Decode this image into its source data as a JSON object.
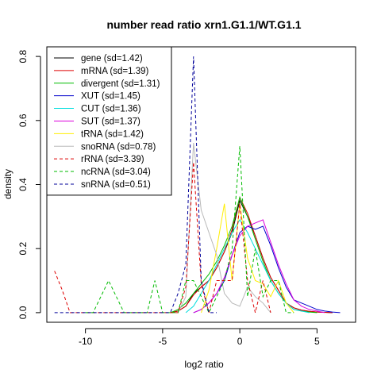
{
  "chart_data": {
    "type": "line",
    "title": "number read ratio xrn1.G1.1/WT.G1.1",
    "xlabel": "log2 ratio",
    "ylabel": "density",
    "xlim": [
      -12.5,
      7.5
    ],
    "ylim": [
      -0.03,
      0.83
    ],
    "xticks": [
      -10,
      -5,
      0,
      5
    ],
    "yticks": [
      0.0,
      0.2,
      0.4,
      0.6,
      0.8
    ],
    "xtick_labels": [
      "-10",
      "-5",
      "0",
      "5"
    ],
    "ytick_labels": [
      "0.0",
      "0.2",
      "0.4",
      "0.6",
      "0.8"
    ],
    "legend_position": "top-left",
    "series": [
      {
        "name": "gene (sd=1.42)",
        "color": "#000000",
        "dash": "solid",
        "x": [
          -4.5,
          -4,
          -3.5,
          -3,
          -2.5,
          -2,
          -1.5,
          -1,
          -0.5,
          0,
          0.5,
          1,
          1.5,
          2,
          2.5,
          3,
          3.5,
          4,
          4.5,
          5,
          5.5,
          6
        ],
        "y": [
          0,
          0.005,
          0.02,
          0.06,
          0.08,
          0.1,
          0.14,
          0.19,
          0.25,
          0.35,
          0.3,
          0.24,
          0.17,
          0.11,
          0.07,
          0.03,
          0.015,
          0.008,
          0.004,
          0.002,
          0.001,
          0
        ]
      },
      {
        "name": "mRNA (sd=1.39)",
        "color": "#dd0000",
        "dash": "solid",
        "x": [
          -4.5,
          -4,
          -3.5,
          -3,
          -2.5,
          -2,
          -1.5,
          -1,
          -0.5,
          0,
          0.5,
          1,
          1.5,
          2,
          2.5,
          3,
          3.5,
          4,
          4.5,
          5,
          5.5,
          6
        ],
        "y": [
          0,
          0.005,
          0.02,
          0.055,
          0.08,
          0.1,
          0.14,
          0.19,
          0.26,
          0.36,
          0.31,
          0.24,
          0.17,
          0.11,
          0.07,
          0.03,
          0.015,
          0.008,
          0.004,
          0.002,
          0.001,
          0
        ]
      },
      {
        "name": "divergent (sd=1.31)",
        "color": "#00bb00",
        "dash": "solid",
        "x": [
          -4.5,
          -4,
          -3.5,
          -3,
          -2.5,
          -2,
          -1.5,
          -1,
          -0.5,
          0,
          0.5,
          1,
          1.5,
          2,
          2.5,
          3,
          3.5,
          4,
          4.5,
          5
        ],
        "y": [
          0,
          0.01,
          0.03,
          0.06,
          0.09,
          0.12,
          0.16,
          0.21,
          0.27,
          0.36,
          0.3,
          0.23,
          0.16,
          0.1,
          0.06,
          0.03,
          0.01,
          0.005,
          0.002,
          0
        ]
      },
      {
        "name": "XUT (sd=1.45)",
        "color": "#0000cc",
        "dash": "solid",
        "x": [
          -3,
          -2.5,
          -2,
          -1.5,
          -1,
          -0.5,
          0,
          0.5,
          1,
          1.5,
          2,
          2.5,
          3,
          3.5,
          4,
          4.5,
          5,
          5.5,
          6,
          6.5
        ],
        "y": [
          0,
          0.01,
          0.03,
          0.06,
          0.1,
          0.18,
          0.25,
          0.27,
          0.26,
          0.27,
          0.21,
          0.14,
          0.08,
          0.04,
          0.03,
          0.02,
          0.01,
          0.005,
          0.002,
          0
        ]
      },
      {
        "name": "CUT (sd=1.36)",
        "color": "#00dddd",
        "dash": "solid",
        "x": [
          -3.5,
          -3,
          -2.5,
          -2,
          -1.5,
          -1,
          -0.5,
          0,
          0.5,
          1,
          1.5,
          2,
          2.5,
          3,
          3.5,
          4,
          4.5
        ],
        "y": [
          0,
          0.02,
          0.06,
          0.1,
          0.15,
          0.2,
          0.25,
          0.29,
          0.25,
          0.2,
          0.15,
          0.1,
          0.06,
          0.03,
          0.01,
          0.005,
          0
        ]
      },
      {
        "name": "SUT (sd=1.37)",
        "color": "#dd00dd",
        "dash": "solid",
        "x": [
          -3,
          -2.5,
          -2,
          -1.5,
          -1,
          -0.5,
          0,
          0.5,
          1,
          1.5,
          2,
          2.5,
          3,
          3.5,
          4,
          4.5,
          5,
          5.5
        ],
        "y": [
          0,
          0.01,
          0.03,
          0.06,
          0.11,
          0.18,
          0.24,
          0.27,
          0.28,
          0.29,
          0.22,
          0.15,
          0.09,
          0.04,
          0.02,
          0.01,
          0.005,
          0
        ]
      },
      {
        "name": "tRNA (sd=1.42)",
        "color": "#ffee00",
        "dash": "solid",
        "x": [
          -2.5,
          -2,
          -1.5,
          -1,
          -0.5,
          0,
          0.5,
          1,
          1.5,
          2,
          2.5,
          3,
          3.5
        ],
        "y": [
          0,
          0.07,
          0.2,
          0.34,
          0.1,
          0.34,
          0.17,
          0.1,
          0.09,
          0.05,
          0.1,
          0.03,
          0
        ]
      },
      {
        "name": "snoRNA (sd=0.78)",
        "color": "#b8b8b8",
        "dash": "solid",
        "x": [
          -4,
          -3.5,
          -3,
          -2.5,
          -2,
          -1.5,
          -1,
          -0.5,
          0,
          0.5,
          1,
          1.5,
          2
        ],
        "y": [
          0,
          0.05,
          0.53,
          0.32,
          0.25,
          0.18,
          0.06,
          0.03,
          0.02,
          0.08,
          0.05,
          0.03,
          0
        ]
      },
      {
        "name": "rRNA (sd=3.39)",
        "color": "#dd0000",
        "dash": "dashed",
        "x": [
          -12,
          -11.5,
          -11,
          -4,
          -3.5,
          -3,
          -2.5,
          -2,
          -1.5,
          -1,
          -0.5,
          0,
          0.5,
          1,
          1.5,
          2
        ],
        "y": [
          0.13,
          0.07,
          0,
          0,
          0.08,
          0.47,
          0.09,
          0,
          0.1,
          0.1,
          0.1,
          0.34,
          0.1,
          0,
          0.1,
          0
        ]
      },
      {
        "name": "ncRNA (sd=3.04)",
        "color": "#00bb00",
        "dash": "dashed",
        "x": [
          -10,
          -9.5,
          -8.5,
          -7.5,
          -6,
          -5.5,
          -5,
          -4,
          -3.5,
          -3,
          -2.5,
          -2,
          -1.5,
          -1,
          -0.5,
          0,
          0.5,
          1,
          1.5,
          2,
          2.5,
          3,
          3.5
        ],
        "y": [
          0,
          0,
          0.1,
          0,
          0,
          0.1,
          0,
          0,
          0.1,
          0.1,
          0.05,
          0,
          0.05,
          0.1,
          0.2,
          0.52,
          0.05,
          0.2,
          0.05,
          0.1,
          0.1,
          0,
          0
        ]
      },
      {
        "name": "snRNA (sd=0.51)",
        "color": "#000099",
        "dash": "dashed",
        "x": [
          -12,
          -4.5,
          -4,
          -3.5,
          -3,
          -2.5,
          -2,
          -1.5
        ],
        "y": [
          0,
          0,
          0.06,
          0.15,
          0.8,
          0.1,
          0,
          0
        ]
      }
    ]
  }
}
